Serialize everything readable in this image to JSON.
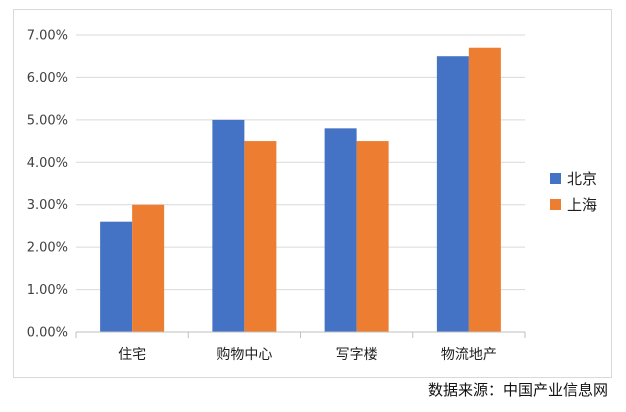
{
  "chart_data": {
    "type": "bar",
    "categories": [
      "住宅",
      "购物中心",
      "写字楼",
      "物流地产"
    ],
    "series": [
      {
        "name": "北京",
        "values": [
          2.6,
          5.0,
          4.8,
          6.5
        ],
        "color": "#4472C4"
      },
      {
        "name": "上海",
        "values": [
          3.0,
          4.5,
          4.5,
          6.7
        ],
        "color": "#ED7D31"
      }
    ],
    "ylim": [
      0,
      7
    ],
    "yticks": [
      "0.00%",
      "1.00%",
      "2.00%",
      "3.00%",
      "4.00%",
      "5.00%",
      "6.00%",
      "7.00%"
    ],
    "grid": true,
    "legend": "right"
  },
  "source_text": "数据来源：中国产业信息网"
}
